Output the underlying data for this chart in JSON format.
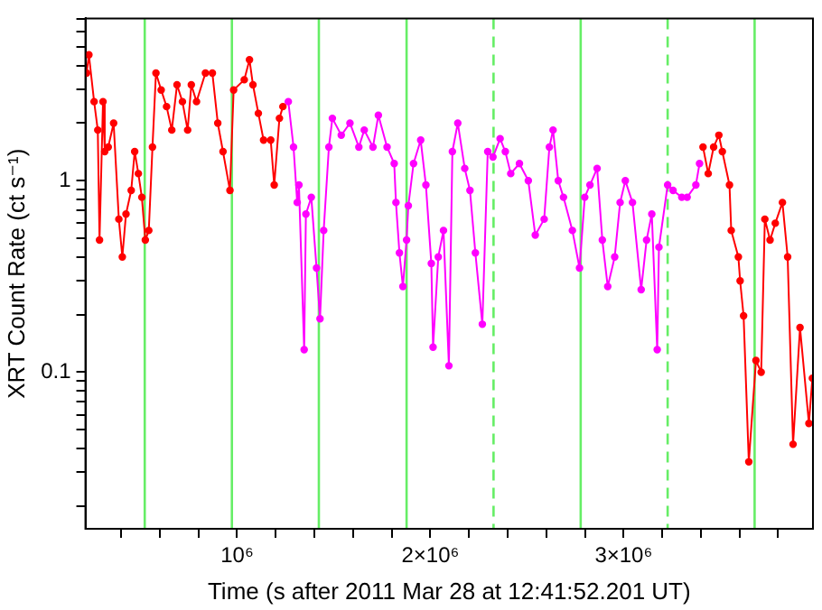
{
  "chart_data": {
    "type": "line",
    "xlabel": "Time (s after 2011 Mar 28 at 12:41:52.201 UT)",
    "ylabel": "XRT Count Rate (ct s⁻¹)",
    "log": "y",
    "grid": false,
    "marker": "circle",
    "xlim": [
      215000,
      3980000
    ],
    "ylim": [
      0.0152,
      7.05
    ],
    "xticks": [
      {
        "value": 400000,
        "label": null
      },
      {
        "value": 600000,
        "label": null
      },
      {
        "value": 800000,
        "label": null
      },
      {
        "value": 1000000,
        "label": "10⁶"
      },
      {
        "value": 1200000,
        "label": null
      },
      {
        "value": 1400000,
        "label": null
      },
      {
        "value": 1600000,
        "label": null
      },
      {
        "value": 1800000,
        "label": null
      },
      {
        "value": 2000000,
        "label": "2×10⁶"
      },
      {
        "value": 2200000,
        "label": null
      },
      {
        "value": 2400000,
        "label": null
      },
      {
        "value": 2600000,
        "label": null
      },
      {
        "value": 2800000,
        "label": null
      },
      {
        "value": 3000000,
        "label": "3×10⁶"
      },
      {
        "value": 3200000,
        "label": null
      },
      {
        "value": 3400000,
        "label": null
      },
      {
        "value": 3600000,
        "label": null
      },
      {
        "value": 3800000,
        "label": null
      }
    ],
    "yticks": [
      {
        "value": 0.02,
        "label": null
      },
      {
        "value": 0.03,
        "label": null
      },
      {
        "value": 0.04,
        "label": null
      },
      {
        "value": 0.05,
        "label": null
      },
      {
        "value": 0.06,
        "label": null
      },
      {
        "value": 0.07,
        "label": null
      },
      {
        "value": 0.08,
        "label": null
      },
      {
        "value": 0.09,
        "label": null
      },
      0.1,
      {
        "value": 0.2,
        "label": null
      },
      {
        "value": 0.3,
        "label": null
      },
      {
        "value": 0.4,
        "label": null
      },
      {
        "value": 0.5,
        "label": null
      },
      {
        "value": 0.6,
        "label": null
      },
      {
        "value": 0.7,
        "label": null
      },
      {
        "value": 0.8,
        "label": null
      },
      {
        "value": 0.9,
        "label": null
      },
      1,
      {
        "value": 2,
        "label": null
      },
      {
        "value": 3,
        "label": null
      },
      {
        "value": 4,
        "label": null
      },
      {
        "value": 5,
        "label": null
      },
      {
        "value": 6,
        "label": null
      },
      {
        "value": 7,
        "label": null
      }
    ],
    "series": [
      {
        "color": "#ff0000",
        "x": [
          221000,
          233000,
          260000,
          279000,
          288000,
          306000,
          315000,
          333000,
          361000,
          388000,
          406000,
          425000,
          452000,
          470000,
          489000,
          507000,
          525000,
          543000,
          562000,
          580000,
          607000,
          635000,
          662000,
          689000,
          717000,
          744000,
          763000,
          790000,
          836000,
          872000,
          900000,
          927000,
          963000,
          982000,
          1037000,
          1064000,
          1082000,
          1110000,
          1137000,
          1174000,
          1192000,
          1219000,
          1237000,
          2300000,
          3411000,
          3438000,
          3466000,
          3493000,
          3511000,
          3548000,
          3557000,
          3594000,
          3603000,
          3621000,
          3648000,
          3685000,
          3712000,
          3731000,
          3758000,
          3785000,
          3822000,
          3849000,
          3877000,
          3913000,
          3959000,
          3977000
        ],
        "values": [
          3.65,
          4.55,
          2.59,
          1.84,
          0.49,
          2.59,
          1.42,
          1.5,
          2.0,
          0.63,
          0.4,
          0.67,
          0.89,
          1.42,
          1.09,
          0.82,
          0.49,
          0.55,
          1.5,
          3.65,
          2.98,
          2.44,
          1.84,
          3.17,
          2.59,
          1.84,
          3.17,
          2.59,
          3.65,
          3.65,
          2.0,
          1.42,
          0.89,
          2.98,
          3.37,
          4.29,
          3.17,
          2.25,
          1.63,
          1.63,
          0.95,
          2.12,
          2.44,
          null,
          1.5,
          1.09,
          1.5,
          1.73,
          1.42,
          0.95,
          0.55,
          0.4,
          0.3,
          0.197,
          0.034,
          0.115,
          0.1,
          0.63,
          0.49,
          0.6,
          0.77,
          0.4,
          0.042,
          0.171,
          0.054,
          0.093
        ]
      },
      {
        "color": "#ff00ff",
        "x": [
          1265000,
          1292000,
          1311000,
          1320000,
          1347000,
          1356000,
          1384000,
          1411000,
          1429000,
          1448000,
          1475000,
          1493000,
          1539000,
          1584000,
          1630000,
          1658000,
          1703000,
          1731000,
          1776000,
          1813000,
          1822000,
          1840000,
          1858000,
          1877000,
          1886000,
          1913000,
          1950000,
          1977000,
          2005000,
          2014000,
          2041000,
          2068000,
          2096000,
          2114000,
          2142000,
          2178000,
          2205000,
          2233000,
          2269000,
          2297000,
          2324000,
          2361000,
          2388000,
          2416000,
          2461000,
          2507000,
          2543000,
          2589000,
          2616000,
          2635000,
          2662000,
          2689000,
          2735000,
          2772000,
          2799000,
          2826000,
          2863000,
          2890000,
          2918000,
          2954000,
          2982000,
          3009000,
          3046000,
          3091000,
          3119000,
          3146000,
          3174000,
          3183000,
          3228000,
          3256000,
          3301000,
          3329000,
          3374000,
          3393000
        ],
        "values": [
          2.59,
          1.5,
          0.77,
          0.95,
          0.131,
          0.67,
          0.82,
          0.35,
          0.19,
          0.55,
          1.5,
          2.12,
          1.73,
          2.0,
          1.5,
          1.84,
          1.5,
          2.2,
          1.5,
          1.23,
          0.77,
          0.42,
          0.28,
          0.49,
          0.74,
          1.23,
          1.63,
          0.95,
          0.37,
          0.135,
          0.4,
          0.55,
          0.108,
          1.42,
          2.0,
          1.16,
          0.89,
          0.42,
          0.178,
          1.42,
          1.33,
          1.66,
          1.42,
          1.09,
          1.23,
          1.0,
          0.52,
          0.63,
          1.5,
          1.84,
          1.0,
          0.82,
          0.55,
          0.35,
          0.82,
          0.95,
          1.16,
          0.49,
          0.28,
          0.4,
          0.77,
          1.0,
          0.77,
          0.27,
          0.49,
          0.67,
          0.131,
          0.45,
          0.95,
          0.89,
          0.82,
          0.82,
          0.95,
          1.23
        ]
      }
    ],
    "ref_lines": [
      {
        "axis": "x",
        "value": 522000,
        "color": "#66ee66",
        "line_style": "solid"
      },
      {
        "axis": "x",
        "value": 973000,
        "color": "#66ee66",
        "line_style": "solid"
      },
      {
        "axis": "x",
        "value": 1423000,
        "color": "#66ee66",
        "line_style": "solid"
      },
      {
        "axis": "x",
        "value": 1877000,
        "color": "#66ee66",
        "line_style": "solid"
      },
      {
        "axis": "x",
        "value": 2327000,
        "color": "#66ee66",
        "line_style": "dashed"
      },
      {
        "axis": "x",
        "value": 2778000,
        "color": "#66ee66",
        "line_style": "solid"
      },
      {
        "axis": "x",
        "value": 3228000,
        "color": "#66ee66",
        "line_style": "dashed"
      },
      {
        "axis": "x",
        "value": 3678000,
        "color": "#66ee66",
        "line_style": "solid"
      }
    ]
  }
}
